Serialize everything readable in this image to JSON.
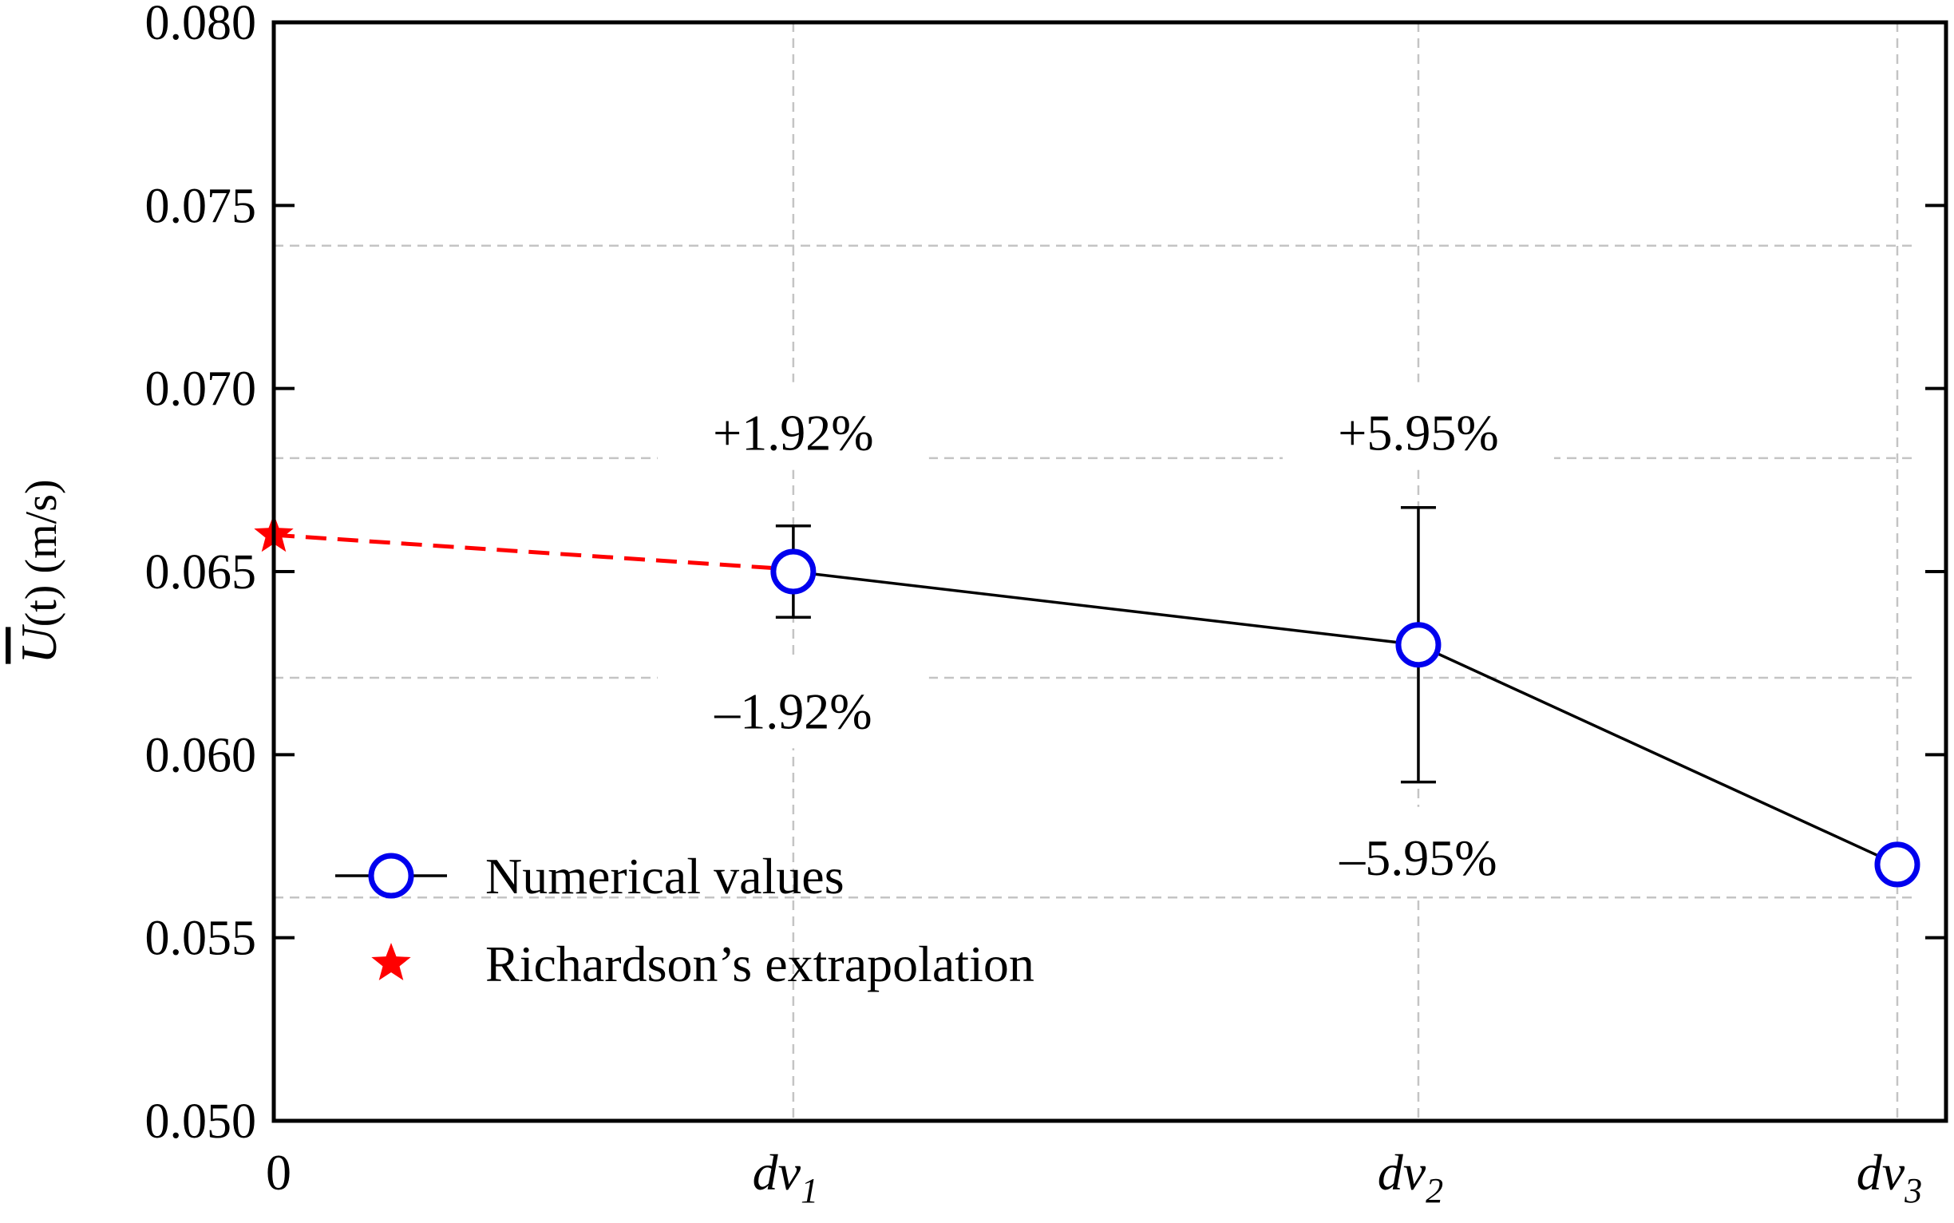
{
  "chart_data": {
    "type": "line",
    "title": "",
    "xlabel": "",
    "ylabel": "U(t) (m/s)",
    "ylabel_parts": {
      "symbol": "U",
      "suffix": "(t) (m/s)"
    },
    "ylim": [
      0.05,
      0.08
    ],
    "yticks": [
      "0.050",
      "0.055",
      "0.060",
      "0.065",
      "0.070",
      "0.075",
      "0.080"
    ],
    "ytick_values": [
      0.05,
      0.055,
      0.06,
      0.065,
      0.07,
      0.075,
      0.08
    ],
    "xlim": [
      0,
      1.03
    ],
    "xticks": [
      {
        "x": 0,
        "base": "0",
        "sub": ""
      },
      {
        "x": 0.32,
        "base": "dv",
        "sub": "1"
      },
      {
        "x": 0.705,
        "base": "dv",
        "sub": "2"
      },
      {
        "x": 1.0,
        "base": "dv",
        "sub": "3"
      }
    ],
    "grid": true,
    "hgrid_values": [
      0.0561,
      0.0621,
      0.0681,
      0.0739
    ],
    "series": [
      {
        "name": "Numerical values",
        "color": "#0000ee",
        "line_color": "#000000",
        "marker": "circle",
        "x": [
          0.32,
          0.705,
          1.0
        ],
        "y": [
          0.065,
          0.063,
          0.057
        ],
        "error_pct": [
          1.92,
          5.95,
          0
        ]
      },
      {
        "name": "Richardson’s extrapolation",
        "color": "#ff0000",
        "marker": "star",
        "x": [
          0
        ],
        "y": [
          0.066
        ]
      }
    ],
    "extrapolation_line": {
      "from_x": 0,
      "from_y": 0.066,
      "to_x": 0.32,
      "to_y": 0.0651,
      "color": "#ff0000"
    },
    "annotations": [
      {
        "text": "+1.92%",
        "x": 0.32,
        "y": 0.0688,
        "anchor": "middle"
      },
      {
        "text": "–1.92%",
        "x": 0.32,
        "y": 0.0612,
        "anchor": "middle"
      },
      {
        "text": "+5.95%",
        "x": 0.705,
        "y": 0.0688,
        "anchor": "middle"
      },
      {
        "text": "–5.95%",
        "x": 0.705,
        "y": 0.0572,
        "anchor": "middle"
      }
    ],
    "legend": {
      "position": "bottom-left",
      "entries": [
        {
          "label": "Numerical values",
          "marker": "circle",
          "color": "#0000ee"
        },
        {
          "label": "Richardson’s extrapolation",
          "marker": "star",
          "color": "#ff0000"
        }
      ]
    }
  }
}
